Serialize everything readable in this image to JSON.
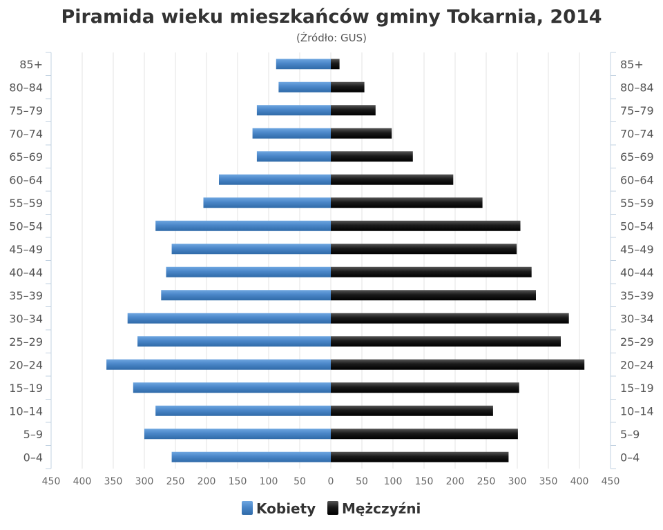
{
  "chart_data": {
    "type": "bar",
    "orientation": "horizontal",
    "subtype": "population-pyramid",
    "title": "Piramida wieku mieszkańców gminy Tokarnia, 2014",
    "subtitle": "(Źródło: GUS)",
    "categories": [
      "0-4",
      "5-9",
      "10-14",
      "15-19",
      "20-24",
      "25-29",
      "30-34",
      "35-39",
      "40-44",
      "45-49",
      "50-54",
      "55-59",
      "60-64",
      "65-69",
      "70-74",
      "75-79",
      "80-84",
      "85+"
    ],
    "series": [
      {
        "name": "Kobiety",
        "color": "#4a86c8",
        "side": "left",
        "values": [
          256,
          300,
          282,
          318,
          361,
          311,
          327,
          273,
          265,
          256,
          282,
          205,
          180,
          119,
          126,
          119,
          84,
          88
        ]
      },
      {
        "name": "Mężczyźni",
        "color": "#1a1a1a",
        "side": "right",
        "values": [
          286,
          301,
          261,
          303,
          408,
          370,
          383,
          330,
          323,
          299,
          305,
          244,
          197,
          132,
          98,
          72,
          54,
          14
        ]
      }
    ],
    "xlim": [
      -450,
      450
    ],
    "xticks": [
      "450",
      "400",
      "350",
      "300",
      "250",
      "200",
      "150",
      "100",
      "50",
      "0",
      "50",
      "100",
      "150",
      "200",
      "250",
      "300",
      "350",
      "400",
      "450"
    ],
    "grid": true,
    "legend": "bottom-center"
  }
}
